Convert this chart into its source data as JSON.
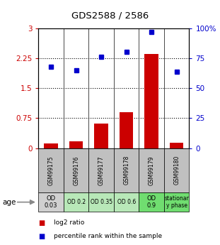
{
  "title": "GDS2588 / 2586",
  "samples": [
    "GSM99175",
    "GSM99176",
    "GSM99177",
    "GSM99178",
    "GSM99179",
    "GSM99180"
  ],
  "log2_ratio": [
    0.12,
    0.18,
    0.62,
    0.9,
    2.35,
    0.13
  ],
  "percentile_rank": [
    68,
    65,
    76,
    80,
    97,
    64
  ],
  "left_ylim": [
    0,
    3
  ],
  "right_ylim": [
    0,
    100
  ],
  "left_yticks": [
    0,
    0.75,
    1.5,
    2.25,
    3
  ],
  "right_yticks": [
    0,
    25,
    50,
    75,
    100
  ],
  "left_yticklabels": [
    "0",
    "0.75",
    "1.5",
    "2.25",
    "3"
  ],
  "right_yticklabels": [
    "0",
    "25",
    "50",
    "75",
    "100%"
  ],
  "bar_color": "#cc0000",
  "dot_color": "#0000cc",
  "bar_width": 0.55,
  "age_labels": [
    "OD\n0.03",
    "OD 0.2",
    "OD 0.35",
    "OD 0.6",
    "OD\n0.9",
    "stationar\ny phase"
  ],
  "age_bg_colors": [
    "#d0d0d0",
    "#b8e8b8",
    "#b8e8b8",
    "#b8e8b8",
    "#70dd70",
    "#70dd70"
  ],
  "sample_bg_color": "#c0c0c0",
  "legend_bar_label": "log2 ratio",
  "legend_dot_label": "percentile rank within the sample"
}
